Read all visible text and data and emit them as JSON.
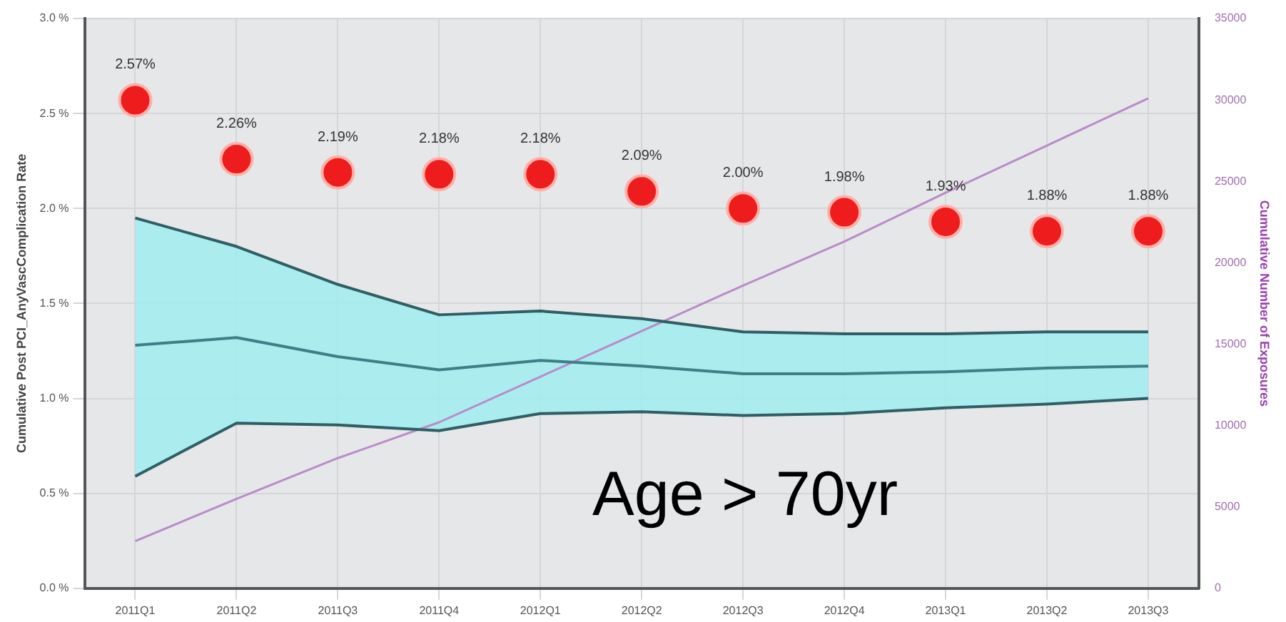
{
  "chart_data": {
    "type": "line",
    "ylabel": "Cumulative Post PCI_AnyVascComplication Rate",
    "y2label": "Cumulative Number of Exposures",
    "categories": [
      "2011Q1",
      "2011Q2",
      "2011Q3",
      "2011Q4",
      "2012Q1",
      "2012Q2",
      "2012Q3",
      "2012Q4",
      "2013Q1",
      "2013Q2",
      "2013Q3"
    ],
    "series": [
      {
        "color": "#2f5f64",
        "values": [
          1.95,
          1.8,
          1.6,
          1.44,
          1.46,
          1.42,
          1.35,
          1.34,
          1.34,
          1.35,
          1.35
        ]
      },
      {
        "color": "#2f5f64",
        "values": [
          0.59,
          0.87,
          0.86,
          0.83,
          0.92,
          0.93,
          0.91,
          0.92,
          0.95,
          0.97,
          1.0
        ]
      },
      {
        "color": "#3d7f86",
        "values": [
          1.28,
          1.32,
          1.22,
          1.15,
          1.2,
          1.17,
          1.13,
          1.13,
          1.14,
          1.16,
          1.17
        ],
        "lower": [
          0.59,
          0.87,
          0.86,
          0.83,
          0.92,
          0.93,
          0.91,
          0.92,
          0.95,
          0.97,
          1.0
        ],
        "upper": [
          1.95,
          1.8,
          1.6,
          1.44,
          1.46,
          1.42,
          1.35,
          1.34,
          1.34,
          1.35,
          1.35
        ]
      },
      {
        "type": "scatter",
        "color": "#ee1c1c",
        "marker": "circle",
        "x": [
          "2011Q1",
          "2011Q2",
          "2011Q3",
          "2011Q4",
          "2012Q1",
          "2012Q2",
          "2012Q3",
          "2012Q4",
          "2013Q1",
          "2013Q2",
          "2013Q3"
        ],
        "values": [
          2.57,
          2.26,
          2.19,
          2.18,
          2.18,
          2.09,
          2.0,
          1.98,
          1.93,
          1.88,
          1.88
        ],
        "value_labels": [
          "2.57%",
          "2.26%",
          "2.19%",
          "2.18%",
          "2.18%",
          "2.09%",
          "2.00%",
          "1.98%",
          "1.93%",
          "1.88%",
          "1.88%"
        ]
      },
      {
        "axis": "y2",
        "color": "#b88cc8",
        "values": [
          2900,
          5500,
          8000,
          10200,
          13000,
          15800,
          18600,
          21300,
          24300,
          27200,
          30100
        ]
      }
    ],
    "ylim": [
      0,
      3
    ],
    "yticks": [
      {
        "value": 0,
        "label": "0.0 %"
      },
      {
        "value": 0.5,
        "label": "0.5 %"
      },
      {
        "value": 1,
        "label": "1.0 %"
      },
      {
        "value": 1.5,
        "label": "1.5 %"
      },
      {
        "value": 2,
        "label": "2.0 %"
      },
      {
        "value": 2.5,
        "label": "2.5 %"
      },
      {
        "value": 3,
        "label": "3.0 %"
      }
    ],
    "y2lim": [
      0,
      35000
    ],
    "y2ticks": [
      0,
      5000,
      10000,
      15000,
      20000,
      25000,
      30000,
      35000
    ],
    "grid": true,
    "annotations": [
      "Age > 70yr"
    ]
  }
}
